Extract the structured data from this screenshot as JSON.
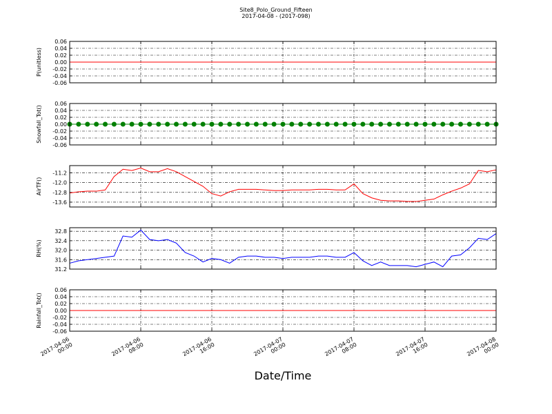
{
  "chart_data": [
    {
      "type": "line",
      "title": "Site8_Polo_Ground_Fifteen",
      "subtitle": "2017-04-08 - (2017-098)",
      "y_label": "P(unitless)",
      "color": "#ff0000",
      "x": [
        "2017-04-06 00:00",
        "2017-04-06 08:00",
        "2017-04-06 16:00",
        "2017-04-07 00:00",
        "2017-04-07 08:00",
        "2017-04-07 16:00",
        "2017-04-08 00:00"
      ],
      "values": [
        0,
        0,
        0,
        0,
        0,
        0,
        0
      ],
      "xlim": [
        "2017-04-06 00:00",
        "2017-04-08 00:00"
      ],
      "xticks": [
        "2017-04-06 00:00",
        "2017-04-06 08:00",
        "2017-04-06 16:00",
        "2017-04-07 00:00",
        "2017-04-07 08:00",
        "2017-04-07 16:00",
        "2017-04-08 00:00"
      ],
      "ylim": [
        -0.06,
        0.06
      ],
      "yticks": [
        -0.06,
        -0.04,
        -0.02,
        {
          "value": 0,
          "label": "0.00"
        },
        0.02,
        0.04,
        0.06
      ],
      "grid": true
    },
    {
      "type": "line",
      "y_label": "Snowfall_Tot()",
      "color": "#008000",
      "marker": "o",
      "x": [
        "2017-04-06 00:00",
        "2017-04-06 01:00",
        "2017-04-06 02:00",
        "2017-04-06 03:00",
        "2017-04-06 04:00",
        "2017-04-06 05:00",
        "2017-04-06 06:00",
        "2017-04-06 07:00",
        "2017-04-06 08:00",
        "2017-04-06 09:00",
        "2017-04-06 10:00",
        "2017-04-06 11:00",
        "2017-04-06 12:00",
        "2017-04-06 13:00",
        "2017-04-06 14:00",
        "2017-04-06 15:00",
        "2017-04-06 16:00",
        "2017-04-06 17:00",
        "2017-04-06 18:00",
        "2017-04-06 19:00",
        "2017-04-06 20:00",
        "2017-04-06 21:00",
        "2017-04-06 22:00",
        "2017-04-06 23:00",
        "2017-04-07 00:00",
        "2017-04-07 01:00",
        "2017-04-07 02:00",
        "2017-04-07 03:00",
        "2017-04-07 04:00",
        "2017-04-07 05:00",
        "2017-04-07 06:00",
        "2017-04-07 07:00",
        "2017-04-07 08:00",
        "2017-04-07 09:00",
        "2017-04-07 10:00",
        "2017-04-07 11:00",
        "2017-04-07 12:00",
        "2017-04-07 13:00",
        "2017-04-07 14:00",
        "2017-04-07 15:00",
        "2017-04-07 16:00",
        "2017-04-07 17:00",
        "2017-04-07 18:00",
        "2017-04-07 19:00",
        "2017-04-07 20:00",
        "2017-04-07 21:00",
        "2017-04-07 22:00",
        "2017-04-07 23:00",
        "2017-04-08 00:00"
      ],
      "values": [
        0,
        0,
        0,
        0,
        0,
        0,
        0,
        0,
        0,
        0,
        0,
        0,
        0,
        0,
        0,
        0,
        0,
        0,
        0,
        0,
        0,
        0,
        0,
        0,
        0,
        0,
        0,
        0,
        0,
        0,
        0,
        0,
        0,
        0,
        0,
        0,
        0,
        0,
        0,
        0,
        0,
        0,
        0,
        0,
        0,
        0,
        0,
        0,
        0
      ],
      "xlim": [
        "2017-04-06 00:00",
        "2017-04-08 00:00"
      ],
      "xticks": [
        "2017-04-06 00:00",
        "2017-04-06 08:00",
        "2017-04-06 16:00",
        "2017-04-07 00:00",
        "2017-04-07 08:00",
        "2017-04-07 16:00",
        "2017-04-08 00:00"
      ],
      "ylim": [
        -0.06,
        0.06
      ],
      "yticks": [
        -0.06,
        -0.04,
        -0.02,
        {
          "value": 0,
          "label": "0.00"
        },
        0.02,
        0.04,
        0.06
      ],
      "grid": true
    },
    {
      "type": "line",
      "y_label": "AirTF()",
      "color": "#ff0000",
      "x": [
        "2017-04-06 00:00",
        "2017-04-06 01:00",
        "2017-04-06 02:00",
        "2017-04-06 03:00",
        "2017-04-06 04:00",
        "2017-04-06 05:00",
        "2017-04-06 06:00",
        "2017-04-06 07:00",
        "2017-04-06 08:00",
        "2017-04-06 09:00",
        "2017-04-06 10:00",
        "2017-04-06 11:00",
        "2017-04-06 12:00",
        "2017-04-06 13:00",
        "2017-04-06 14:00",
        "2017-04-06 15:00",
        "2017-04-06 16:00",
        "2017-04-06 17:00",
        "2017-04-06 18:00",
        "2017-04-06 19:00",
        "2017-04-06 20:00",
        "2017-04-06 21:00",
        "2017-04-06 22:00",
        "2017-04-06 23:00",
        "2017-04-07 00:00",
        "2017-04-07 01:00",
        "2017-04-07 02:00",
        "2017-04-07 03:00",
        "2017-04-07 04:00",
        "2017-04-07 05:00",
        "2017-04-07 06:00",
        "2017-04-07 07:00",
        "2017-04-07 08:00",
        "2017-04-07 09:00",
        "2017-04-07 10:00",
        "2017-04-07 11:00",
        "2017-04-07 12:00",
        "2017-04-07 13:00",
        "2017-04-07 14:00",
        "2017-04-07 15:00",
        "2017-04-07 16:00",
        "2017-04-07 17:00",
        "2017-04-07 18:00",
        "2017-04-07 19:00",
        "2017-04-07 20:00",
        "2017-04-07 21:00",
        "2017-04-07 22:00",
        "2017-04-07 23:00",
        "2017-04-08 00:00"
      ],
      "values": [
        -12.85,
        -12.75,
        -12.7,
        -12.7,
        -12.6,
        -11.5,
        -10.9,
        -11.0,
        -10.8,
        -11.1,
        -11.1,
        -10.85,
        -11.1,
        -11.5,
        -11.9,
        -12.3,
        -12.9,
        -13.1,
        -12.75,
        -12.55,
        -12.55,
        -12.55,
        -12.6,
        -12.65,
        -12.65,
        -12.6,
        -12.6,
        -12.6,
        -12.55,
        -12.55,
        -12.6,
        -12.6,
        -12.1,
        -12.9,
        -13.25,
        -13.45,
        -13.5,
        -13.5,
        -13.55,
        -13.55,
        -13.45,
        -13.35,
        -13.0,
        -12.7,
        -12.45,
        -12.1,
        -11.0,
        -11.1,
        -10.95
      ],
      "xlim": [
        "2017-04-06 00:00",
        "2017-04-08 00:00"
      ],
      "xticks": [
        "2017-04-06 00:00",
        "2017-04-06 08:00",
        "2017-04-06 16:00",
        "2017-04-07 00:00",
        "2017-04-07 08:00",
        "2017-04-07 16:00",
        "2017-04-08 00:00"
      ],
      "ylim": [
        -14.0,
        -10.6
      ],
      "yticks": [
        -13.6,
        -12.8,
        {
          "value": -12,
          "label": "-12.0"
        },
        -11.2
      ],
      "grid": true
    },
    {
      "type": "line",
      "y_label": "RH(%)",
      "color": "#0000ff",
      "x": [
        "2017-04-06 00:00",
        "2017-04-06 01:00",
        "2017-04-06 02:00",
        "2017-04-06 03:00",
        "2017-04-06 04:00",
        "2017-04-06 05:00",
        "2017-04-06 06:00",
        "2017-04-06 07:00",
        "2017-04-06 08:00",
        "2017-04-06 09:00",
        "2017-04-06 10:00",
        "2017-04-06 11:00",
        "2017-04-06 12:00",
        "2017-04-06 13:00",
        "2017-04-06 14:00",
        "2017-04-06 15:00",
        "2017-04-06 16:00",
        "2017-04-06 17:00",
        "2017-04-06 18:00",
        "2017-04-06 19:00",
        "2017-04-06 20:00",
        "2017-04-06 21:00",
        "2017-04-06 22:00",
        "2017-04-06 23:00",
        "2017-04-07 00:00",
        "2017-04-07 01:00",
        "2017-04-07 02:00",
        "2017-04-07 03:00",
        "2017-04-07 04:00",
        "2017-04-07 05:00",
        "2017-04-07 06:00",
        "2017-04-07 07:00",
        "2017-04-07 08:00",
        "2017-04-07 09:00",
        "2017-04-07 10:00",
        "2017-04-07 11:00",
        "2017-04-07 12:00",
        "2017-04-07 13:00",
        "2017-04-07 14:00",
        "2017-04-07 15:00",
        "2017-04-07 16:00",
        "2017-04-07 17:00",
        "2017-04-07 18:00",
        "2017-04-07 19:00",
        "2017-04-07 20:00",
        "2017-04-07 21:00",
        "2017-04-07 22:00",
        "2017-04-07 23:00",
        "2017-04-08 00:00"
      ],
      "values": [
        31.45,
        31.55,
        31.6,
        31.65,
        31.7,
        31.75,
        32.6,
        32.55,
        32.85,
        32.45,
        32.4,
        32.45,
        32.3,
        31.9,
        31.75,
        31.5,
        31.65,
        31.6,
        31.45,
        31.7,
        31.75,
        31.75,
        31.7,
        31.7,
        31.65,
        31.7,
        31.7,
        31.7,
        31.75,
        31.75,
        31.7,
        31.7,
        31.9,
        31.55,
        31.35,
        31.5,
        31.35,
        31.35,
        31.35,
        31.3,
        31.4,
        31.5,
        31.3,
        31.75,
        31.8,
        32.1,
        32.5,
        32.45,
        32.7
      ],
      "xlim": [
        "2017-04-06 00:00",
        "2017-04-08 00:00"
      ],
      "xticks": [
        "2017-04-06 00:00",
        "2017-04-06 08:00",
        "2017-04-06 16:00",
        "2017-04-07 00:00",
        "2017-04-07 08:00",
        "2017-04-07 16:00",
        "2017-04-08 00:00"
      ],
      "ylim": [
        31.2,
        32.95
      ],
      "yticks": [
        31.2,
        31.6,
        {
          "value": 32,
          "label": "32.0"
        },
        32.4,
        32.8
      ],
      "grid": true
    },
    {
      "type": "line",
      "y_label": "Rainfall_Tot()",
      "x_label": "Date/Time",
      "color": "#ff0000",
      "x": [
        "2017-04-06 00:00",
        "2017-04-06 08:00",
        "2017-04-06 16:00",
        "2017-04-07 00:00",
        "2017-04-07 08:00",
        "2017-04-07 16:00",
        "2017-04-08 00:00"
      ],
      "values": [
        0,
        0,
        0,
        0,
        0,
        0,
        0
      ],
      "xlim": [
        "2017-04-06 00:00",
        "2017-04-08 00:00"
      ],
      "xticks": [
        {
          "value": "2017-04-06 00:00",
          "label": "2017-04-06\n00:00"
        },
        {
          "value": "2017-04-06 08:00",
          "label": "2017-04-06\n08:00"
        },
        {
          "value": "2017-04-06 16:00",
          "label": "2017-04-06\n16:00"
        },
        {
          "value": "2017-04-07 00:00",
          "label": "2017-04-07\n00:00"
        },
        {
          "value": "2017-04-07 08:00",
          "label": "2017-04-07\n08:00"
        },
        {
          "value": "2017-04-07 16:00",
          "label": "2017-04-07\n16:00"
        },
        {
          "value": "2017-04-08 00:00",
          "label": "2017-04-08\n00:00"
        }
      ],
      "ylim": [
        -0.06,
        0.06
      ],
      "yticks": [
        -0.06,
        -0.04,
        -0.02,
        {
          "value": 0,
          "label": "0.00"
        },
        0.02,
        0.04,
        0.06
      ],
      "grid": true
    }
  ]
}
